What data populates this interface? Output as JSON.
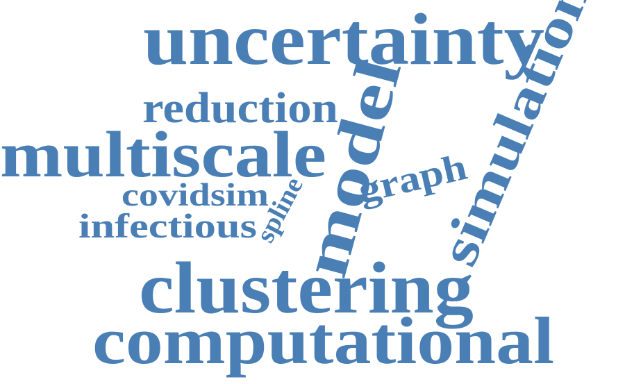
{
  "colors": {
    "word": "#4a7fb5",
    "background": "#ffffff"
  },
  "words": {
    "uncertainty": "uncertainty",
    "reduction": "reduction",
    "multiscale": "multiscale",
    "covidsim": "covidsim",
    "infectious": "infectious",
    "spline": "spline",
    "model": "model",
    "graph": "graph",
    "simulation": "simulation",
    "clustering": "clustering",
    "computational": "computational"
  }
}
